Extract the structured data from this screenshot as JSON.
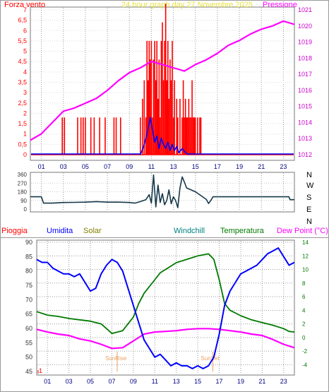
{
  "colors": {
    "wind": "#FF0000",
    "direction": "#0000FF",
    "pressure": "#FF00FF",
    "dir_line": "#16384A",
    "humidity": "#0000FF",
    "temperature": "#007A00",
    "dewpoint": "#FF00FF",
    "rain": "#FF0000",
    "solar": "#808000",
    "windchill": "#008080",
    "grid": "#9A9A9A",
    "sun_marker": "#E8A060"
  },
  "labels": {
    "wind": "Forza vento",
    "title": "24 hour graph day   27 Novembre 2025",
    "pressure": "Pressione",
    "rain": "Pioggia",
    "humidity": "Umidita",
    "solar": "Solar",
    "windchill": "Windchill",
    "temperature": "Temperatura",
    "dewpoint": "Dew Point (°C)",
    "sunrise": "SunRise",
    "sunset": "SunSet",
    "rain_value": "1"
  },
  "chart_data": [
    {
      "type": "bar",
      "x_ticks": [
        "01",
        "03",
        "05",
        "07",
        "09",
        "11",
        "13",
        "15",
        "17",
        "19",
        "21",
        "23"
      ],
      "xlim": [
        0,
        24
      ],
      "y_left": {
        "ylim": [
          0,
          7
        ],
        "ticks": [
          "0",
          "0,5",
          "1",
          "1,5",
          "2",
          "2,5",
          "3",
          "3,5",
          "4",
          "4,5",
          "5",
          "5,5",
          "6",
          "6,5",
          "7"
        ]
      },
      "y_right": {
        "ylim": [
          1012,
          1021
        ],
        "ticks": [
          "1012",
          "1013",
          "1014",
          "1015",
          "1016",
          "1017",
          "1018",
          "1019",
          "1020",
          "1021"
        ]
      },
      "series": [
        {
          "name": "Forza vento",
          "axis": "left",
          "x": [
            2.9,
            3.1,
            4.3,
            4.6,
            4.8,
            5.0,
            5.5,
            5.8,
            6.3,
            6.8,
            7.6,
            7.8,
            8.2,
            10.0,
            10.2,
            10.35,
            10.5,
            10.6,
            10.7,
            10.8,
            10.9,
            11.0,
            11.1,
            11.2,
            11.3,
            11.4,
            11.5,
            11.6,
            11.7,
            11.8,
            11.9,
            12.0,
            12.1,
            12.2,
            12.3,
            12.4,
            12.5,
            12.6,
            12.7,
            12.8,
            12.9,
            13.0,
            13.1,
            13.3,
            13.4,
            13.6,
            13.8,
            13.9,
            14.0,
            14.1,
            14.2,
            14.3,
            14.4,
            14.5,
            14.6,
            14.7,
            14.8,
            14.9,
            15.0,
            15.2,
            15.4,
            15.5
          ],
          "values": [
            1.8,
            1.8,
            1.8,
            1.8,
            1.8,
            1.8,
            1.8,
            1.8,
            1.8,
            1.8,
            1.8,
            1.8,
            1.8,
            1.8,
            2.7,
            3.6,
            1.8,
            5.5,
            3.6,
            5.5,
            4.6,
            5.5,
            1.8,
            4.6,
            5.5,
            3.6,
            5.5,
            2.7,
            4.6,
            1.8,
            5.5,
            6.4,
            3.6,
            5.5,
            7.3,
            3.6,
            5.5,
            2.7,
            4.6,
            3.6,
            5.5,
            1.8,
            3.6,
            2.7,
            1.8,
            2.7,
            1.8,
            3.6,
            1.8,
            2.7,
            1.8,
            1.8,
            2.7,
            1.8,
            1.8,
            3.6,
            1.8,
            1.8,
            1.8,
            1.8,
            1.8,
            1.8
          ]
        },
        {
          "name": "Pressione",
          "axis": "right",
          "x": [
            0,
            1,
            2,
            3,
            4,
            5,
            6,
            7,
            8,
            9,
            10,
            11,
            12,
            13,
            14,
            15,
            16,
            17,
            18,
            19,
            20,
            21,
            22,
            23,
            24
          ],
          "values": [
            1012.9,
            1013.3,
            1014.0,
            1014.7,
            1014.9,
            1015.2,
            1015.5,
            1016.0,
            1016.6,
            1017.1,
            1017.4,
            1017.8,
            1017.6,
            1017.4,
            1017.2,
            1017.6,
            1017.9,
            1018.3,
            1018.8,
            1019.1,
            1019.5,
            1019.8,
            1020.0,
            1020.3,
            1020.1
          ]
        }
      ]
    },
    {
      "type": "line",
      "xlim": [
        0,
        24
      ],
      "y_left": {
        "ylim": [
          0,
          360
        ],
        "ticks": [
          "0",
          "90",
          "180",
          "270",
          "360"
        ]
      },
      "y_right": {
        "ticks": [
          "N",
          "W",
          "S",
          "E",
          "N"
        ]
      },
      "series": [
        {
          "x": [
            0,
            1.0,
            1.2,
            2,
            3,
            4,
            5,
            6,
            7,
            8,
            9,
            9.5,
            10,
            10.5,
            10.8,
            11.0,
            11.2,
            11.4,
            11.6,
            11.8,
            12.0,
            12.2,
            12.4,
            12.6,
            12.8,
            13.0,
            13.2,
            13.4,
            13.6,
            13.8,
            14.0,
            14.2,
            14.5,
            15.0,
            15.5,
            16.0,
            16.2,
            16.4,
            16.6,
            17,
            20,
            23.5,
            23.6,
            24
          ],
          "values": [
            128,
            128,
            62,
            62,
            68,
            70,
            72,
            78,
            72,
            72,
            68,
            62,
            78,
            98,
            150,
            62,
            355,
            22,
            250,
            68,
            160,
            45,
            90,
            200,
            55,
            128,
            90,
            15,
            220,
            335,
            280,
            220,
            205,
            180,
            140,
            100,
            58,
            90,
            128,
            128,
            128,
            128,
            98,
            98
          ]
        }
      ]
    },
    {
      "type": "line",
      "x_ticks": [
        "01",
        "03",
        "05",
        "07",
        "09",
        "11",
        "13",
        "15",
        "17",
        "19",
        "21",
        "23"
      ],
      "xlim": [
        0,
        24
      ],
      "y_left": {
        "ylim": [
          45,
          90
        ],
        "ticks": [
          "45",
          "50",
          "55",
          "60",
          "65",
          "70",
          "75",
          "80",
          "85",
          "90"
        ]
      },
      "y_right": {
        "ylim": [
          -5,
          14
        ],
        "ticks": [
          "-4",
          "-2",
          "0",
          "2",
          "4",
          "6",
          "8",
          "10",
          "12",
          "14"
        ]
      },
      "series": [
        {
          "name": "Umidita",
          "axis": "left",
          "x": [
            0,
            0.5,
            1,
            1.5,
            2,
            2.5,
            3,
            3.5,
            4,
            4.5,
            5,
            5.5,
            6,
            6.5,
            7,
            7.5,
            8,
            8.5,
            9,
            9.5,
            10,
            10.5,
            11,
            11.5,
            12,
            12.5,
            13,
            13.5,
            14,
            14.5,
            15,
            15.5,
            16,
            16.5,
            17,
            17.5,
            18,
            18.5,
            19,
            19.5,
            20,
            20.5,
            21,
            21.5,
            22,
            22.5,
            23,
            23.5,
            24
          ],
          "values": [
            84,
            83,
            83,
            81,
            80,
            79,
            79,
            78,
            79,
            76,
            73,
            74,
            79,
            82,
            84,
            83,
            80,
            74,
            68,
            62,
            56,
            53,
            50,
            51,
            49,
            47,
            48,
            47,
            47,
            46,
            47,
            46,
            47,
            50,
            58,
            68,
            73,
            76,
            79,
            80,
            81,
            82,
            84,
            86,
            87,
            88,
            85,
            82,
            83
          ]
        },
        {
          "name": "Temperatura",
          "axis": "right",
          "x": [
            0,
            1,
            2,
            3,
            4,
            5,
            6,
            7,
            8,
            9,
            9.5,
            10,
            10.5,
            11,
            11.5,
            12,
            12.5,
            13,
            14,
            15,
            16,
            16.5,
            17,
            17.5,
            18,
            19,
            20,
            21,
            22,
            23,
            23.5,
            24
          ],
          "values": [
            3.8,
            3.3,
            3.1,
            2.8,
            2.6,
            2.4,
            2.0,
            0.6,
            1.0,
            3.0,
            5.0,
            6.5,
            7.5,
            8.5,
            9.5,
            10.0,
            10.5,
            11.0,
            11.5,
            12.0,
            12.3,
            11.5,
            8.5,
            5.0,
            4.0,
            3.2,
            2.6,
            2.2,
            1.8,
            1.3,
            0.9,
            0.8
          ]
        },
        {
          "name": "Dew Point (°C)",
          "axis": "right",
          "x": [
            0,
            1,
            2,
            3,
            4,
            5,
            6,
            7,
            8,
            9,
            10,
            11,
            12,
            13,
            14,
            15,
            16,
            17,
            18,
            19,
            20,
            21,
            22,
            23,
            24
          ],
          "values": [
            1.2,
            0.8,
            0.5,
            0.3,
            -0.2,
            -0.5,
            -1.0,
            -1.6,
            -1.5,
            -0.5,
            0.5,
            0.8,
            0.9,
            1.0,
            1.2,
            1.3,
            1.3,
            1.2,
            1.0,
            0.8,
            0.5,
            0.3,
            -0.3,
            -1.0,
            -1.5
          ]
        }
      ],
      "annotations": [
        {
          "text": "SunRise",
          "x": 7.5
        },
        {
          "text": "SunSet",
          "x": 16.4
        }
      ]
    }
  ]
}
